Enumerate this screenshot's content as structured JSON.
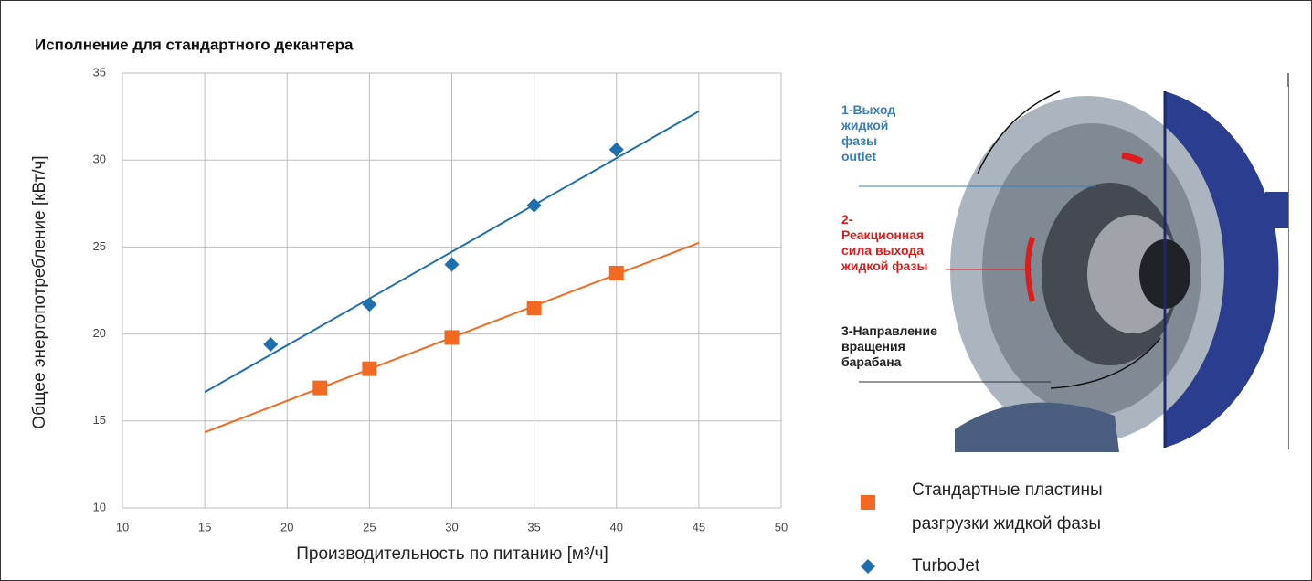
{
  "chart_data": {
    "type": "scatter",
    "title": "Исполнение для стандартного декантера",
    "xlabel": "Производительность по питанию [м³/ч]",
    "ylabel": "Общее энергопотребление [кВт/ч]",
    "xlim": [
      10,
      50
    ],
    "xticks": [
      10,
      15,
      20,
      25,
      30,
      35,
      40,
      45,
      50
    ],
    "ylim": [
      10,
      35
    ],
    "yticks": [
      10,
      15,
      20,
      25,
      30,
      35
    ],
    "grid": true,
    "trendline": true,
    "trendline_xrange": [
      15,
      45
    ],
    "series": [
      {
        "name": "Стандартные пластины разгрузки жидкой фазы",
        "color": "#f26a21",
        "marker": "square",
        "x": [
          22,
          25,
          30,
          35,
          40
        ],
        "values": [
          16.9,
          18.0,
          19.8,
          21.5,
          23.5
        ]
      },
      {
        "name": "TurboJet",
        "color": "#1f6fad",
        "marker": "diamond",
        "x": [
          19,
          25,
          30,
          35,
          40
        ],
        "values": [
          19.4,
          21.7,
          24.0,
          27.4,
          30.6
        ]
      }
    ]
  },
  "image": {
    "labels": [
      {
        "color": "#3a7fb8",
        "lines": [
          "1-Выход",
          "жидкой",
          "фазы",
          "outlet"
        ]
      },
      {
        "color": "#e01b1b",
        "lines": [
          "2-",
          "Реакционная",
          "сила выхода",
          "жидкой фазы"
        ]
      },
      {
        "color": "#222222",
        "lines": [
          "3-Направление",
          "вращения",
          "барабана"
        ]
      }
    ]
  }
}
